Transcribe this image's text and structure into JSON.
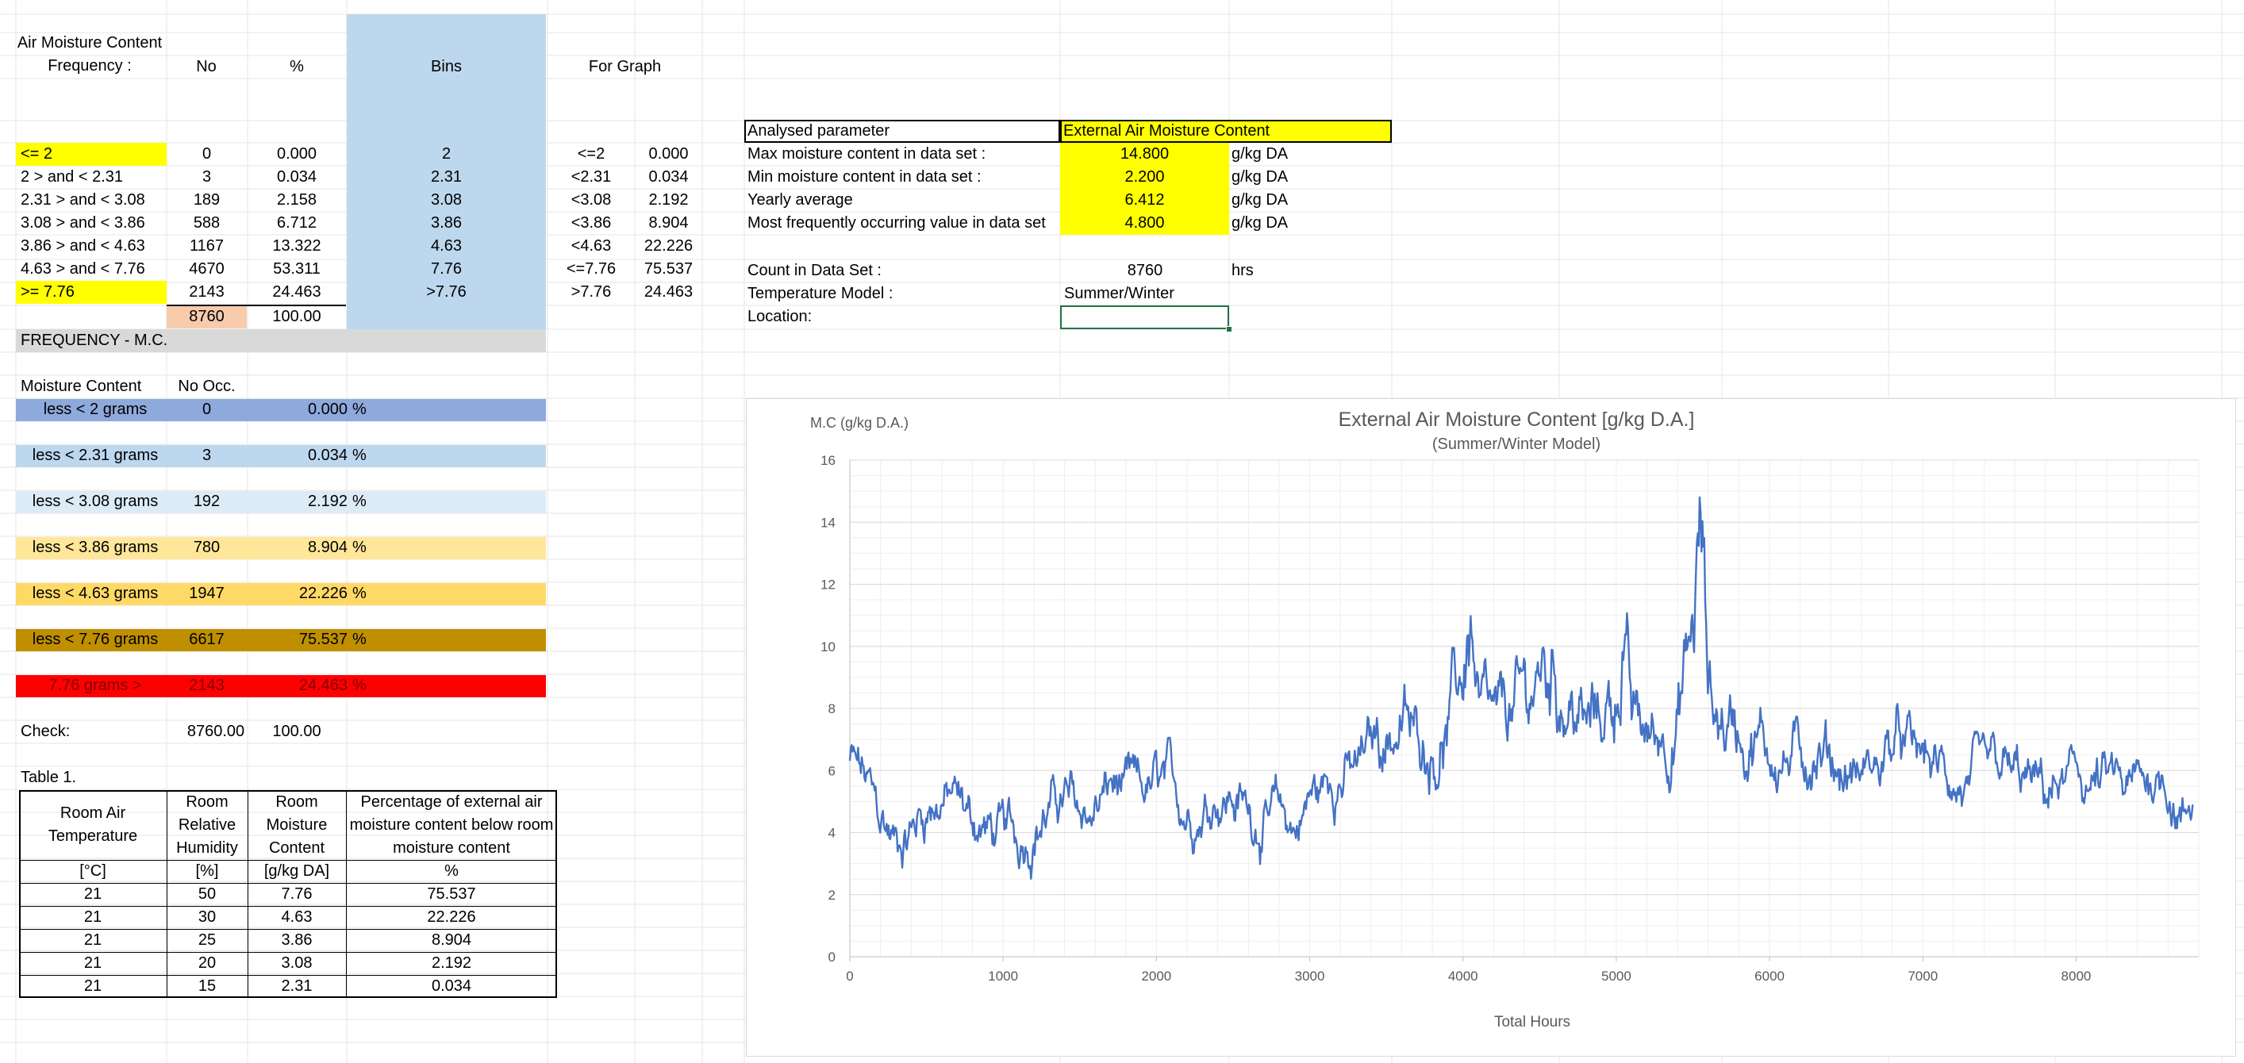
{
  "freq": {
    "h_label": "Air Moisture Content Frequency :",
    "h_no": "No",
    "h_pct": "%",
    "h_bins": "Bins",
    "h_graph": "For Graph",
    "rows": [
      {
        "label": "<= 2",
        "no": "0",
        "pct": "0.000",
        "bin": "2",
        "g1": "<=2",
        "g2": "0.000"
      },
      {
        "label": "2 > and < 2.31",
        "no": "3",
        "pct": "0.034",
        "bin": "2.31",
        "g1": "<2.31",
        "g2": "0.034"
      },
      {
        "label": "2.31 > and < 3.08",
        "no": "189",
        "pct": "2.158",
        "bin": "3.08",
        "g1": "<3.08",
        "g2": "2.192"
      },
      {
        "label": "3.08 > and < 3.86",
        "no": "588",
        "pct": "6.712",
        "bin": "3.86",
        "g1": "<3.86",
        "g2": "8.904"
      },
      {
        "label": "3.86 > and < 4.63",
        "no": "1167",
        "pct": "13.322",
        "bin": "4.63",
        "g1": "<4.63",
        "g2": "22.226"
      },
      {
        "label": "4.63 > and < 7.76",
        "no": "4670",
        "pct": "53.311",
        "bin": "7.76",
        "g1": "<=7.76",
        "g2": "75.537"
      },
      {
        "label": ">= 7.76",
        "no": "2143",
        "pct": "24.463",
        "bin": ">7.76",
        "g1": ">7.76",
        "g2": "24.463"
      }
    ],
    "total_no": "8760",
    "total_pct": "100.00"
  },
  "mc": {
    "title": "FREQUENCY - M.C.",
    "h_mc": "Moisture Content",
    "h_occ": "No Occ.",
    "rows": [
      {
        "label": "less < 2 grams",
        "occ": "0",
        "pct": "0.000",
        "unit": "%",
        "color": "#8ea9db"
      },
      {
        "label": "less < 2.31 grams",
        "occ": "3",
        "pct": "0.034",
        "unit": "%",
        "color": "#bdd7ee"
      },
      {
        "label": "less < 3.08 grams",
        "occ": "192",
        "pct": "2.192",
        "unit": "%",
        "color": "#ddebf7"
      },
      {
        "label": "less < 3.86 grams",
        "occ": "780",
        "pct": "8.904",
        "unit": "%",
        "color": "#ffe699"
      },
      {
        "label": "less < 4.63 grams",
        "occ": "1947",
        "pct": "22.226",
        "unit": "%",
        "color": "#ffd966"
      },
      {
        "label": "less < 7.76 grams",
        "occ": "6617",
        "pct": "75.537",
        "unit": "%",
        "color": "#bf8f00"
      },
      {
        "label": "7.76 grams >",
        "occ": "2143",
        "pct": "24.463",
        "unit": "%",
        "color": "#ff0000"
      }
    ],
    "check_label": "Check:",
    "check_no": "8760.00",
    "check_pct": "100.00"
  },
  "table1": {
    "title": "Table 1.",
    "headers": [
      "Room Air Temperature",
      "Room Relative Humidity",
      "Room Moisture Content",
      "Percentage of external air moisture content below room moisture content"
    ],
    "units": [
      "[°C]",
      "[%]",
      "[g/kg DA]",
      "%"
    ],
    "rows": [
      [
        "21",
        "50",
        "7.76",
        "75.537"
      ],
      [
        "21",
        "30",
        "4.63",
        "22.226"
      ],
      [
        "21",
        "25",
        "3.86",
        "8.904"
      ],
      [
        "21",
        "20",
        "3.08",
        "2.192"
      ],
      [
        "21",
        "15",
        "2.31",
        "0.034"
      ]
    ]
  },
  "summary": {
    "param_label": "Analysed parameter",
    "param_value": "External Air Moisture Content",
    "rows": [
      {
        "label": "Max moisture content in data set :",
        "value": "14.800",
        "unit": "g/kg DA"
      },
      {
        "label": "Min moisture content in data set :",
        "value": "2.200",
        "unit": "g/kg DA"
      },
      {
        "label": "Yearly average",
        "value": "6.412",
        "unit": "g/kg DA"
      },
      {
        "label": "Most frequently occurring value in data set",
        "value": "4.800",
        "unit": "g/kg DA"
      }
    ],
    "count_label": "Count in Data Set :",
    "count_value": "8760",
    "count_unit": "hrs",
    "model_label": "Temperature Model :",
    "model_value": "Summer/Winter",
    "location_label": "Location:",
    "location_value": ""
  },
  "chart_data": {
    "type": "line",
    "title": "External Air Moisture Content [g/kg D.A.]",
    "subtitle": "(Summer/Winter Model)",
    "ylabel": "M.C (g/kg D.A.)",
    "xlabel": "Total Hours",
    "xlim": [
      0,
      8800
    ],
    "ylim": [
      0,
      16
    ],
    "xticks": [
      0,
      1000,
      2000,
      3000,
      4000,
      5000,
      6000,
      7000,
      8000
    ],
    "yticks": [
      0,
      2,
      4,
      6,
      8,
      10,
      12,
      14,
      16
    ],
    "grid": true,
    "series": [
      {
        "color": "#4472c4",
        "x": [
          0,
          100,
          200,
          300,
          400,
          500,
          600,
          700,
          800,
          900,
          1000,
          1100,
          1200,
          1300,
          1400,
          1500,
          1600,
          1700,
          1800,
          1900,
          2000,
          2100,
          2200,
          2300,
          2400,
          2500,
          2600,
          2700,
          2800,
          2900,
          3000,
          3100,
          3200,
          3300,
          3400,
          3500,
          3600,
          3700,
          3800,
          3900,
          4000,
          4050,
          4100,
          4200,
          4300,
          4400,
          4500,
          4600,
          4700,
          4800,
          4900,
          5000,
          5050,
          5100,
          5200,
          5300,
          5400,
          5500,
          5550,
          5600,
          5700,
          5800,
          5900,
          6000,
          6100,
          6200,
          6300,
          6400,
          6500,
          6600,
          6700,
          6800,
          6900,
          7000,
          7100,
          7200,
          7300,
          7400,
          7500,
          7600,
          7700,
          7800,
          7900,
          8000,
          8100,
          8200,
          8300,
          8400,
          8500,
          8600,
          8700,
          8760
        ],
        "y": [
          6.3,
          5.6,
          4.2,
          3.6,
          4.3,
          4.9,
          5.3,
          5.0,
          4.4,
          4.1,
          3.8,
          3.6,
          4.4,
          4.9,
          5.1,
          4.4,
          4.6,
          5.5,
          5.1,
          4.9,
          5.3,
          5.0,
          4.7,
          5.1,
          5.5,
          5.3,
          4.7,
          4.5,
          4.4,
          4.1,
          5.2,
          5.4,
          6.3,
          5.9,
          6.6,
          7.2,
          7.6,
          6.8,
          7.0,
          7.6,
          9.0,
          11.0,
          7.7,
          6.8,
          7.4,
          7.9,
          8.9,
          9.2,
          8.5,
          7.3,
          7.6,
          8.5,
          11.0,
          7.6,
          6.9,
          7.2,
          8.0,
          10.5,
          13.8,
          8.8,
          7.6,
          7.7,
          7.5,
          6.8,
          6.3,
          6.5,
          7.0,
          6.7,
          6.1,
          6.0,
          6.2,
          6.9,
          6.4,
          6.2,
          5.9,
          5.7,
          5.3,
          5.4,
          5.5,
          5.5,
          5.3,
          5.1,
          5.4,
          5.6,
          5.5,
          5.5,
          5.2,
          5.3,
          5.9,
          5.7,
          4.5,
          5.1
        ]
      }
    ]
  }
}
